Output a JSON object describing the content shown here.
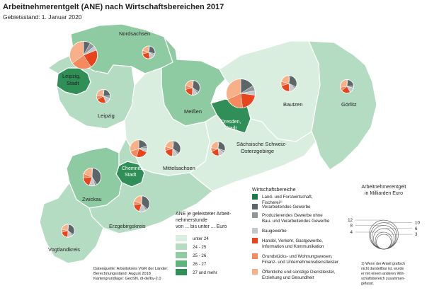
{
  "title": "Arbeitnehmerentgelt (ANE) nach Wirtschaftsbereichen 2017",
  "subtitle": "Gebietsstand: 1. Januar 2020",
  "colors": {
    "sector": [
      "#1f7a4a",
      "#5c6669",
      "#8f9698",
      "#c3c8ca",
      "#e8451f",
      "#f58a5e",
      "#f8b089"
    ],
    "classes": [
      "#d9eedf",
      "#b4dcc2",
      "#8fcba2",
      "#5fb37d",
      "#2f8f57"
    ],
    "border": "#ffffff",
    "outline": "#8a9a90"
  },
  "regions": [
    {
      "name": "Nordsachsen",
      "class": 2
    },
    {
      "name": "Leipzig, Stadt",
      "class": 4
    },
    {
      "name": "Leipzig",
      "class": 1
    },
    {
      "name": "Meißen",
      "class": 2
    },
    {
      "name": "Dresden, Stadt",
      "class": 4
    },
    {
      "name": "Bautzen",
      "class": 0
    },
    {
      "name": "Görlitz",
      "class": 1
    },
    {
      "name": "Mittelsachsen",
      "class": 0
    },
    {
      "name": "Sächsische Schweiz-Osterzgebirge",
      "class": 0
    },
    {
      "name": "Chemnitz, Stadt",
      "class": 4
    },
    {
      "name": "Zwickau",
      "class": 2
    },
    {
      "name": "Erzgebirgskreis",
      "class": 1
    },
    {
      "name": "Vogtlandkreis",
      "class": 1
    }
  ],
  "region_labels": [
    "Nordsachsen",
    "Leipzig,",
    "Stadt",
    "Leipzig",
    "Meißen",
    "Dresden,",
    "Stadt",
    "Bautzen",
    "Görlitz",
    "Sächsische Schweiz-",
    "Osterzgebirge",
    "Mittelsachsen",
    "Chemnitz,",
    "Stadt",
    "Zwickau",
    "Erzgebirgskreis",
    "Vogtlandkreis"
  ],
  "chart_data": {
    "type": "pie",
    "unit": "Milliarden Euro",
    "sectors": [
      "Land- und Forstwirtschaft, Fischerei",
      "Verarbeitendes Gewerbe",
      "Produzierendes Gewerbe ohne Bau- und Verarbeitendes Gewerbe",
      "Baugewerbe",
      "Handel, Verkehr, Gastgewerbe, Information und Kommunikation",
      "Grundstücks- und Wohnungswesen, Finanz- und Unternehmensdienstleister",
      "Öffentliche und sonstige Dienstleister, Erziehung und Gesundheit"
    ],
    "pies": [
      {
        "region": "Leipzig, Stadt",
        "total": 11.0,
        "shares": [
          0,
          8,
          6,
          5,
          22,
          24,
          35
        ]
      },
      {
        "region": "Nordsachsen",
        "total": 2.2,
        "shares": [
          3,
          25,
          5,
          14,
          24,
          9,
          20
        ]
      },
      {
        "region": "Leipzig",
        "total": 2.6,
        "shares": [
          2,
          22,
          6,
          14,
          23,
          10,
          23
        ]
      },
      {
        "region": "Meißen",
        "total": 3.0,
        "shares": [
          2,
          32,
          5,
          12,
          20,
          9,
          20
        ]
      },
      {
        "region": "Dresden, Stadt",
        "total": 12.0,
        "shares": [
          0,
          16,
          6,
          5,
          21,
          20,
          32
        ]
      },
      {
        "region": "Bautzen",
        "total": 3.5,
        "shares": [
          2,
          30,
          4,
          13,
          21,
          9,
          21
        ]
      },
      {
        "region": "Görlitz",
        "total": 2.5,
        "shares": [
          2,
          22,
          5,
          13,
          22,
          9,
          27
        ]
      },
      {
        "region": "Mittelsachsen",
        "total": 3.4,
        "shares": [
          3,
          32,
          4,
          12,
          20,
          8,
          21
        ]
      },
      {
        "region": "Sächsische Schweiz-Osterzgebirge",
        "total": 2.8,
        "shares": [
          2,
          28,
          5,
          13,
          20,
          9,
          23
        ]
      },
      {
        "region": "Chemnitz, Stadt",
        "total": 4.3,
        "shares": [
          0,
          20,
          5,
          7,
          22,
          16,
          30
        ]
      },
      {
        "region": "Zwickau",
        "total": 4.5,
        "shares": [
          1,
          40,
          4,
          10,
          18,
          8,
          19
        ]
      },
      {
        "region": "Erzgebirgskreis",
        "total": 3.5,
        "shares": [
          1,
          36,
          4,
          14,
          18,
          8,
          19
        ]
      },
      {
        "region": "Vogtlandkreis",
        "total": 2.3,
        "shares": [
          2,
          33,
          4,
          12,
          20,
          8,
          21
        ]
      }
    ]
  },
  "class_legend": {
    "title_lines": [
      "ANE je geleisteter Arbeit-",
      "nehmerstunde",
      "von ... bis unter ... Euro"
    ],
    "items": [
      "unter 24",
      "24 - 25",
      "25 - 26",
      "26 - 27",
      "27 und mehr"
    ]
  },
  "sector_legend": {
    "title": "Wirtschaftsbereiche",
    "items": [
      [
        "Land- und Forstwirtschaft,",
        "Fischerei¹⁾"
      ],
      [
        "Verarbeitendes Gewerbe"
      ],
      [
        "Produzierendes Gewerbe ohne",
        "Bau- und Verarbeitendes Gewerbe"
      ],
      [
        "Baugewerbe"
      ],
      [
        "Handel, Verkehr, Gastgewerbe,",
        "Information und Kommunikation"
      ],
      [
        "Grundstücks- und Wohnungswesen,",
        "Finanz- und Unternehmensdienstleister"
      ],
      [
        "Öffentliche und sonstige Dienstleister,",
        "Erziehung und Gesundheit"
      ]
    ]
  },
  "size_legend": {
    "title_lines": [
      "Arbeitnehmerentgelt",
      "in Milliarden Euro"
    ],
    "values": [
      12,
      10,
      8,
      6,
      4,
      3
    ]
  },
  "footnote": [
    "1) Wenn der Anteil grafisch",
    "nicht darstellbar ist, wurde",
    "er mit einem anderen Wirt-",
    "schaftsbereich zusammen-",
    "gefasst."
  ],
  "source": [
    "Datenquelle: Arbeitskreis VGR der Länder;",
    "Berechnungsstand: August 2018",
    "Kartengrundlage: GeoSN, dl-de/by-2.0"
  ]
}
